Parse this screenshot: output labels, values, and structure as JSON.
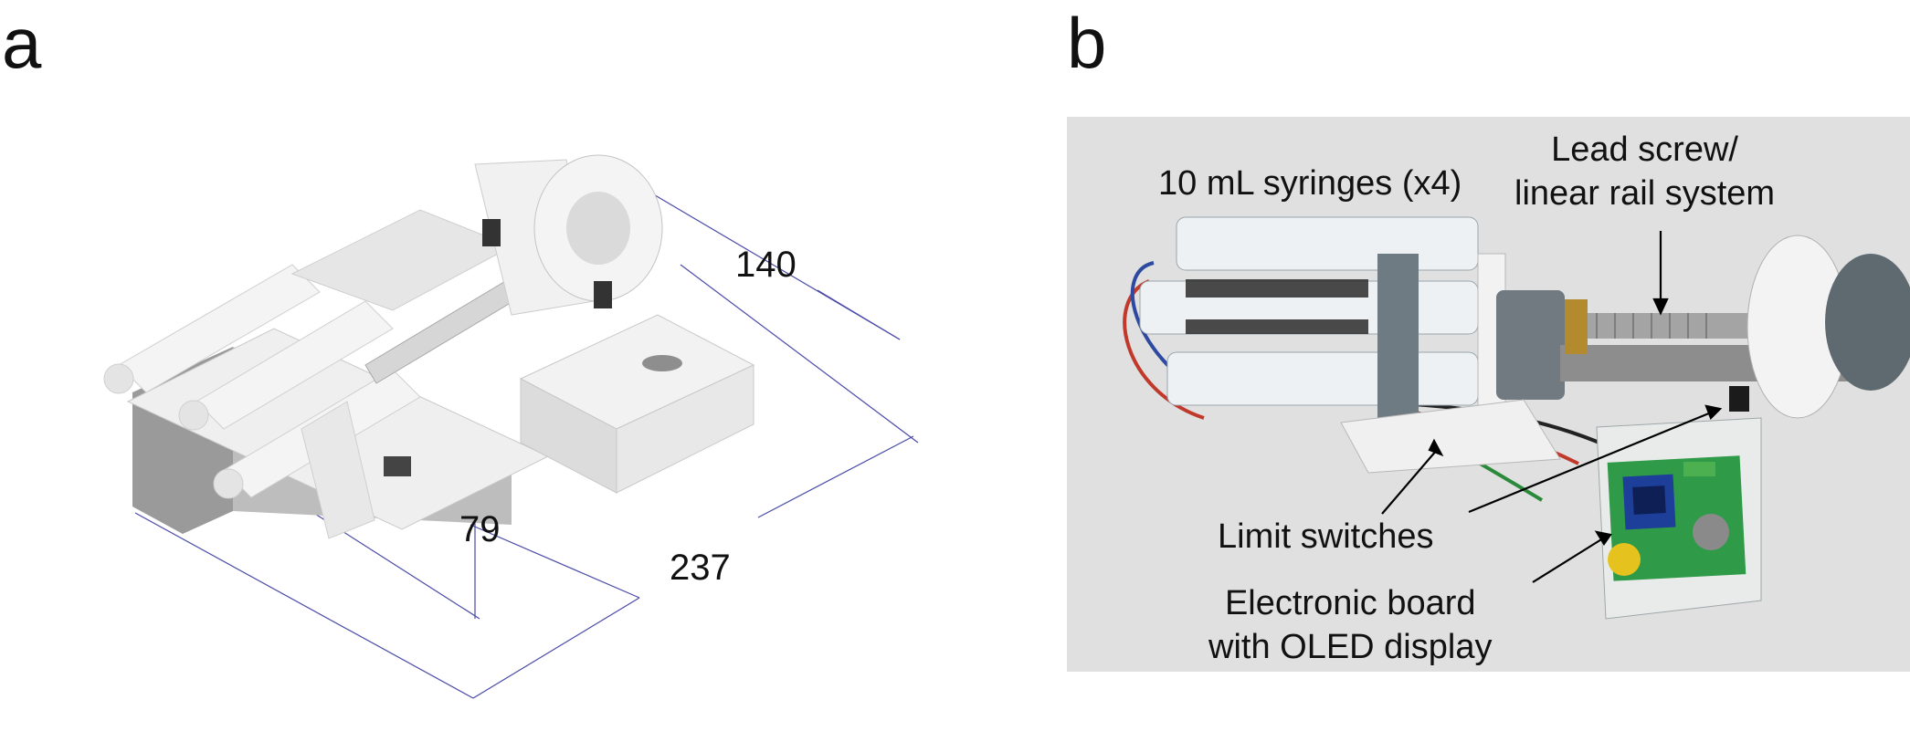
{
  "panel_a": {
    "label": "a",
    "dimensions": {
      "width": "140",
      "height": "79",
      "length": "237"
    }
  },
  "panel_b": {
    "label": "b",
    "callouts": {
      "syringes": "10 mL syringes (x4)",
      "lead_screw_line1": "Lead screw/",
      "lead_screw_line2": "linear rail system",
      "limit_switches": "Limit switches",
      "board_line1": "Electronic board",
      "board_line2": "with OLED display"
    }
  },
  "colors": {
    "dimension_line": "#4a4aa8",
    "cad_part_light": "#ececec",
    "cad_part_dark": "#8f8f8f",
    "photo_background": "#dfe0df",
    "pcb_green": "#2f9a48",
    "knob_gray": "#5f6a70",
    "oled_blue": "#1d3f9a"
  }
}
